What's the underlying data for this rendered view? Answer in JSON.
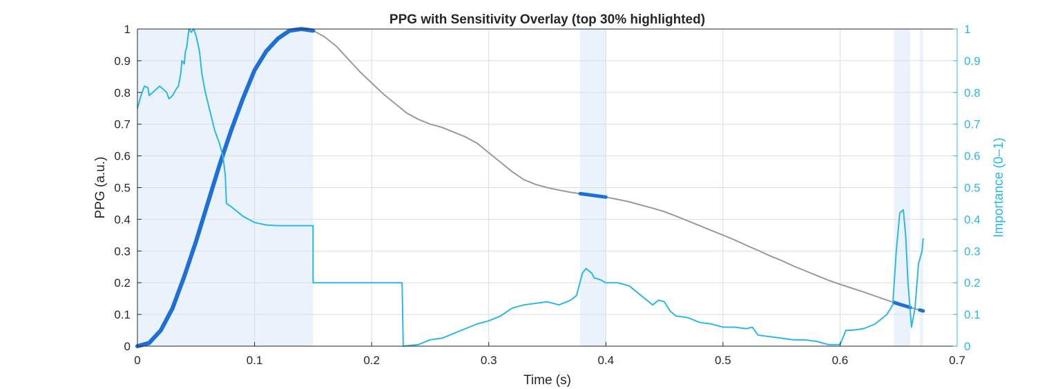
{
  "chart_data": {
    "type": "line",
    "title": "PPG with Sensitivity Overlay (top 30% highlighted)",
    "xlabel": "Time (s)",
    "ylabel_left": "PPG (a.u.)",
    "ylabel_right": "Importance (0–1)",
    "xlim": [
      0,
      0.7
    ],
    "ylim_left": [
      0,
      1
    ],
    "ylim_right": [
      0,
      1
    ],
    "x_ticks": [
      "0",
      "0.1",
      "0.2",
      "0.3",
      "0.4",
      "0.5",
      "0.6",
      "0.7"
    ],
    "y_ticks_left": [
      "0",
      "0.1",
      "0.2",
      "0.3",
      "0.4",
      "0.5",
      "0.6",
      "0.7",
      "0.8",
      "0.9",
      "1"
    ],
    "y_ticks_right": [
      "0",
      "0.1",
      "0.2",
      "0.3",
      "0.4",
      "0.5",
      "0.6",
      "0.7",
      "0.8",
      "0.9",
      "1"
    ],
    "grid": true,
    "colors": {
      "ppg": "#999999",
      "ppg_highlight": "#1f6fd8",
      "importance": "#2ab8e8",
      "highlight_band": "#eaf2fc",
      "right_axis": "#2ab8e8"
    },
    "highlight_regions": [
      [
        0.0,
        0.15
      ],
      [
        0.378,
        0.4
      ],
      [
        0.646,
        0.66
      ],
      [
        0.668,
        0.671
      ]
    ],
    "series": [
      {
        "axis": "left",
        "points": [
          [
            0.0,
            0.0
          ],
          [
            0.01,
            0.01
          ],
          [
            0.02,
            0.05
          ],
          [
            0.03,
            0.12
          ],
          [
            0.04,
            0.22
          ],
          [
            0.05,
            0.33
          ],
          [
            0.06,
            0.45
          ],
          [
            0.07,
            0.57
          ],
          [
            0.08,
            0.68
          ],
          [
            0.09,
            0.78
          ],
          [
            0.1,
            0.87
          ],
          [
            0.11,
            0.93
          ],
          [
            0.12,
            0.97
          ],
          [
            0.13,
            0.995
          ],
          [
            0.14,
            1.0
          ],
          [
            0.15,
            0.995
          ],
          [
            0.16,
            0.975
          ],
          [
            0.17,
            0.945
          ],
          [
            0.18,
            0.905
          ],
          [
            0.19,
            0.865
          ],
          [
            0.2,
            0.83
          ],
          [
            0.21,
            0.795
          ],
          [
            0.22,
            0.765
          ],
          [
            0.23,
            0.735
          ],
          [
            0.24,
            0.715
          ],
          [
            0.25,
            0.7
          ],
          [
            0.26,
            0.69
          ],
          [
            0.27,
            0.675
          ],
          [
            0.28,
            0.66
          ],
          [
            0.29,
            0.64
          ],
          [
            0.3,
            0.61
          ],
          [
            0.31,
            0.58
          ],
          [
            0.32,
            0.55
          ],
          [
            0.33,
            0.525
          ],
          [
            0.34,
            0.51
          ],
          [
            0.35,
            0.5
          ],
          [
            0.36,
            0.492
          ],
          [
            0.37,
            0.485
          ],
          [
            0.38,
            0.48
          ],
          [
            0.39,
            0.475
          ],
          [
            0.4,
            0.47
          ],
          [
            0.41,
            0.463
          ],
          [
            0.42,
            0.455
          ],
          [
            0.43,
            0.445
          ],
          [
            0.44,
            0.435
          ],
          [
            0.45,
            0.424
          ],
          [
            0.46,
            0.41
          ],
          [
            0.47,
            0.395
          ],
          [
            0.48,
            0.38
          ],
          [
            0.49,
            0.365
          ],
          [
            0.5,
            0.35
          ],
          [
            0.51,
            0.335
          ],
          [
            0.52,
            0.318
          ],
          [
            0.53,
            0.302
          ],
          [
            0.54,
            0.285
          ],
          [
            0.55,
            0.27
          ],
          [
            0.56,
            0.253
          ],
          [
            0.57,
            0.238
          ],
          [
            0.58,
            0.223
          ],
          [
            0.59,
            0.208
          ],
          [
            0.6,
            0.195
          ],
          [
            0.61,
            0.183
          ],
          [
            0.62,
            0.171
          ],
          [
            0.63,
            0.158
          ],
          [
            0.64,
            0.145
          ],
          [
            0.65,
            0.133
          ],
          [
            0.66,
            0.122
          ],
          [
            0.67,
            0.112
          ],
          [
            0.672,
            0.11
          ]
        ]
      },
      {
        "axis": "right",
        "points": [
          [
            0.0,
            0.75
          ],
          [
            0.003,
            0.79
          ],
          [
            0.006,
            0.82
          ],
          [
            0.009,
            0.815
          ],
          [
            0.01,
            0.79
          ],
          [
            0.013,
            0.8
          ],
          [
            0.016,
            0.81
          ],
          [
            0.019,
            0.82
          ],
          [
            0.022,
            0.81
          ],
          [
            0.025,
            0.8
          ],
          [
            0.027,
            0.78
          ],
          [
            0.03,
            0.79
          ],
          [
            0.033,
            0.81
          ],
          [
            0.035,
            0.82
          ],
          [
            0.037,
            0.86
          ],
          [
            0.038,
            0.9
          ],
          [
            0.04,
            0.89
          ],
          [
            0.041,
            0.93
          ],
          [
            0.042,
            0.94
          ],
          [
            0.043,
            0.97
          ],
          [
            0.044,
            1.0
          ],
          [
            0.046,
            0.99
          ],
          [
            0.048,
            1.0
          ],
          [
            0.05,
            0.98
          ],
          [
            0.053,
            0.93
          ],
          [
            0.055,
            0.86
          ],
          [
            0.058,
            0.8
          ],
          [
            0.062,
            0.74
          ],
          [
            0.066,
            0.68
          ],
          [
            0.07,
            0.64
          ],
          [
            0.073,
            0.6
          ],
          [
            0.075,
            0.54
          ],
          [
            0.076,
            0.45
          ],
          [
            0.08,
            0.44
          ],
          [
            0.09,
            0.41
          ],
          [
            0.1,
            0.39
          ],
          [
            0.11,
            0.382
          ],
          [
            0.12,
            0.38
          ],
          [
            0.13,
            0.38
          ],
          [
            0.15,
            0.38
          ],
          [
            0.15,
            0.2
          ],
          [
            0.226,
            0.2
          ],
          [
            0.227,
            0.0
          ],
          [
            0.24,
            0.005
          ],
          [
            0.25,
            0.02
          ],
          [
            0.26,
            0.025
          ],
          [
            0.27,
            0.04
          ],
          [
            0.28,
            0.055
          ],
          [
            0.29,
            0.07
          ],
          [
            0.3,
            0.08
          ],
          [
            0.31,
            0.095
          ],
          [
            0.32,
            0.12
          ],
          [
            0.33,
            0.13
          ],
          [
            0.34,
            0.135
          ],
          [
            0.35,
            0.14
          ],
          [
            0.36,
            0.13
          ],
          [
            0.37,
            0.145
          ],
          [
            0.375,
            0.16
          ],
          [
            0.38,
            0.23
          ],
          [
            0.383,
            0.245
          ],
          [
            0.388,
            0.23
          ],
          [
            0.39,
            0.215
          ],
          [
            0.395,
            0.21
          ],
          [
            0.4,
            0.2
          ],
          [
            0.41,
            0.2
          ],
          [
            0.42,
            0.19
          ],
          [
            0.43,
            0.16
          ],
          [
            0.44,
            0.13
          ],
          [
            0.445,
            0.145
          ],
          [
            0.45,
            0.14
          ],
          [
            0.455,
            0.11
          ],
          [
            0.46,
            0.095
          ],
          [
            0.47,
            0.09
          ],
          [
            0.48,
            0.075
          ],
          [
            0.49,
            0.07
          ],
          [
            0.5,
            0.06
          ],
          [
            0.51,
            0.06
          ],
          [
            0.52,
            0.055
          ],
          [
            0.525,
            0.06
          ],
          [
            0.53,
            0.035
          ],
          [
            0.54,
            0.03
          ],
          [
            0.55,
            0.025
          ],
          [
            0.56,
            0.02
          ],
          [
            0.57,
            0.02
          ],
          [
            0.58,
            0.015
          ],
          [
            0.59,
            0.005
          ],
          [
            0.6,
            0.005
          ],
          [
            0.605,
            0.05
          ],
          [
            0.61,
            0.05
          ],
          [
            0.62,
            0.055
          ],
          [
            0.63,
            0.07
          ],
          [
            0.64,
            0.1
          ],
          [
            0.645,
            0.13
          ],
          [
            0.648,
            0.3
          ],
          [
            0.651,
            0.42
          ],
          [
            0.654,
            0.43
          ],
          [
            0.656,
            0.35
          ],
          [
            0.658,
            0.2
          ],
          [
            0.661,
            0.06
          ],
          [
            0.664,
            0.12
          ],
          [
            0.667,
            0.26
          ],
          [
            0.67,
            0.3
          ],
          [
            0.671,
            0.34
          ]
        ]
      }
    ]
  }
}
